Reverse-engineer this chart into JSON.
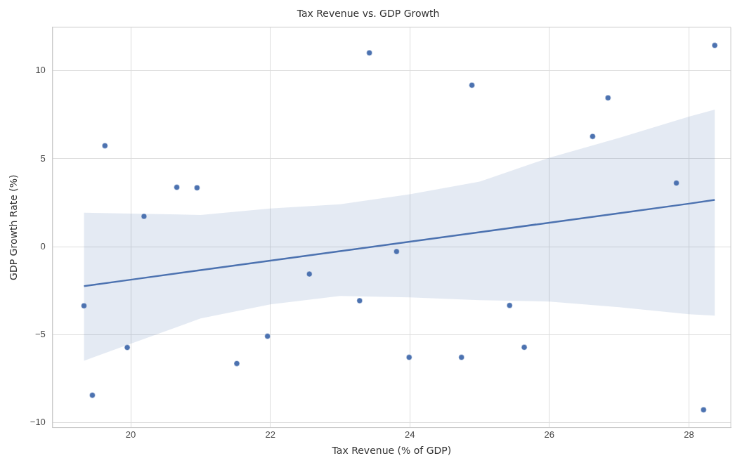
{
  "chart_data": {
    "type": "scatter",
    "title": "Tax Revenue vs. GDP Growth",
    "xlabel": "Tax Revenue (% of GDP)",
    "ylabel": "GDP Growth Rate (%)",
    "xlim": [
      18.88,
      28.6
    ],
    "ylim": [
      -10.27,
      12.47
    ],
    "xticks": [
      20,
      22,
      24,
      26,
      28
    ],
    "yticks": [
      -10,
      -5,
      0,
      5,
      10
    ],
    "grid": true,
    "marker": "circle",
    "series": [
      {
        "color": "#4c72b0",
        "x": [
          19.33,
          19.45,
          19.63,
          19.95,
          20.19,
          20.66,
          20.95,
          21.52,
          21.96,
          22.56,
          23.28,
          23.42,
          23.81,
          23.99,
          24.74,
          24.89,
          25.43,
          25.64,
          26.62,
          26.84,
          27.82,
          28.21,
          28.37
        ],
        "values": [
          -3.35,
          -8.43,
          5.74,
          -5.72,
          1.73,
          3.38,
          3.35,
          -6.63,
          -5.08,
          -1.55,
          -3.06,
          11.02,
          -0.27,
          -6.28,
          -6.28,
          9.18,
          -3.33,
          -5.71,
          6.27,
          8.46,
          3.62,
          -9.26,
          11.44
        ]
      },
      {
        "type": "line",
        "color": "#4c72b0",
        "marker": "none",
        "x": [
          19.33,
          20,
          21,
          22,
          23,
          24,
          25,
          26,
          27,
          28,
          28.37
        ],
        "values": [
          -2.23,
          -1.87,
          -1.33,
          -0.79,
          -0.25,
          0.29,
          0.83,
          1.37,
          1.91,
          2.45,
          2.66
        ],
        "lower": [
          -6.47,
          -5.51,
          -4.07,
          -3.27,
          -2.79,
          -2.87,
          -3.03,
          -3.11,
          -3.43,
          -3.83,
          -3.91
        ],
        "upper": [
          1.94,
          1.89,
          1.81,
          2.18,
          2.42,
          2.98,
          3.7,
          5.06,
          6.19,
          7.39,
          7.79
        ]
      }
    ]
  }
}
